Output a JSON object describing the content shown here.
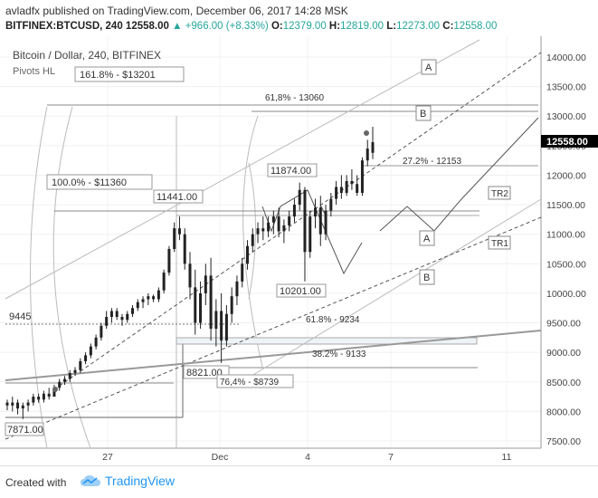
{
  "header": {
    "author": "avladfx",
    "published_text": "published on TradingView.com, December 06, 2017 14:28 MSK",
    "symbol": "BITFINEX:BTCUSD, 240",
    "last": "12558.00",
    "change": "+966.00 (+8.33%)",
    "o_label": "O:",
    "o_value": "12379.00",
    "h_label": "H:",
    "h_value": "12819.00",
    "l_label": "L:",
    "l_value": "12273.00",
    "c_label": "C:",
    "c_value": "12558.00"
  },
  "chart": {
    "title": "Bitcoin / Dollar, 240, BITFINEX",
    "indicator": "Pivots HL",
    "price_axis": [
      "14000.00",
      "13500.00",
      "13000.00",
      "12500.00",
      "12000.00",
      "11500.00",
      "11000.00",
      "10500.00",
      "10000.00",
      "9500.00",
      "9000.00",
      "8500.00",
      "8000.00",
      "7500.00"
    ],
    "last_price_label": "12558.00",
    "date_axis": [
      "27",
      "Dec",
      "4",
      "7",
      "11"
    ],
    "annotations": {
      "fib_1618": "161.8% - $13201",
      "fib_100": "100.0% - $11360",
      "fib_764": "76,4% - $8739",
      "r618_13060": "61,8% - 13060",
      "r272_12153": "27.2% - 12153",
      "r618_9234": "61.8% - 9234",
      "r382_9133": "38.2% - 9133",
      "pivot_11874": "11874.00",
      "pivot_11441": "11441.00",
      "pivot_10201": "10201.00",
      "pivot_8821": "8821.00",
      "pivot_7871": "7871.00",
      "level_9445": "9445",
      "label_A_top": "A",
      "label_B_top": "B",
      "label_TR2": "TR2",
      "label_A_low": "A",
      "label_TR1": "TR1",
      "label_B_low": "B"
    }
  },
  "footer": {
    "created_with": "Created with",
    "brand": "TradingView"
  },
  "colors": {
    "up": "#26a69a",
    "candle": "#222222",
    "last_price_bg": "#000000",
    "brand": "#2196f3"
  },
  "chart_data": {
    "type": "candlestick",
    "title": "Bitcoin / Dollar, 240, BITFINEX",
    "y_ticks": [
      7500,
      8000,
      8500,
      9000,
      9500,
      10000,
      10500,
      11000,
      11500,
      12000,
      12500,
      13000,
      13500,
      14000
    ],
    "x_ticks": [
      "27",
      "Dec",
      "4",
      "7",
      "11"
    ],
    "last_close": 12558,
    "series": [
      {
        "ohlc": [
          [
            8150,
            8200,
            8020,
            8100
          ],
          [
            8100,
            8250,
            8000,
            8150
          ],
          [
            8150,
            8200,
            7950,
            8050
          ],
          [
            8050,
            8150,
            7870,
            8100
          ],
          [
            8100,
            8200,
            8000,
            8150
          ],
          [
            8150,
            8300,
            8100,
            8250
          ],
          [
            8250,
            8300,
            8150,
            8200
          ],
          [
            8200,
            8350,
            8150,
            8300
          ],
          [
            8300,
            8400,
            8200,
            8250
          ],
          [
            8250,
            8450,
            8250,
            8400
          ],
          [
            8400,
            8550,
            8350,
            8500
          ],
          [
            8500,
            8600,
            8450,
            8550
          ],
          [
            8550,
            8700,
            8500,
            8650
          ],
          [
            8650,
            8750,
            8600,
            8700
          ],
          [
            8700,
            8900,
            8650,
            8850
          ],
          [
            8850,
            9000,
            8800,
            8950
          ],
          [
            8950,
            9150,
            8900,
            9100
          ],
          [
            9100,
            9300,
            9050,
            9250
          ],
          [
            9250,
            9500,
            9200,
            9450
          ],
          [
            9450,
            9700,
            9400,
            9600
          ],
          [
            9600,
            9750,
            9500,
            9700
          ],
          [
            9700,
            9750,
            9550,
            9600
          ],
          [
            9600,
            9650,
            9450,
            9550
          ],
          [
            9550,
            9700,
            9500,
            9650
          ],
          [
            9650,
            9800,
            9600,
            9750
          ],
          [
            9750,
            9900,
            9700,
            9850
          ],
          [
            9850,
            9950,
            9750,
            9900
          ],
          [
            9900,
            10000,
            9800,
            9950
          ],
          [
            9950,
            9980,
            9850,
            9900
          ],
          [
            9900,
            10100,
            9850,
            10050
          ],
          [
            10050,
            10400,
            10000,
            10350
          ],
          [
            10350,
            10800,
            10300,
            10750
          ],
          [
            10750,
            11200,
            10700,
            11100
          ],
          [
            11100,
            11300,
            10900,
            11000
          ],
          [
            11000,
            11100,
            10400,
            10500
          ],
          [
            10500,
            10700,
            9900,
            10100
          ],
          [
            10100,
            10400,
            9300,
            9500
          ],
          [
            9500,
            10200,
            9400,
            10000
          ],
          [
            10000,
            10500,
            9800,
            10300
          ],
          [
            10300,
            10600,
            9200,
            9400
          ],
          [
            9400,
            9900,
            9100,
            9700
          ],
          [
            9700,
            10000,
            8821,
            9200
          ],
          [
            9200,
            9800,
            9100,
            9650
          ],
          [
            9650,
            10100,
            9500,
            9950
          ],
          [
            9950,
            10300,
            9800,
            10200
          ],
          [
            10200,
            10600,
            10100,
            10500
          ],
          [
            10500,
            10900,
            10400,
            10800
          ],
          [
            10800,
            11100,
            10700,
            11000
          ],
          [
            11000,
            11200,
            10850,
            11100
          ],
          [
            11100,
            11300,
            10900,
            11050
          ],
          [
            11050,
            11300,
            10950,
            11200
          ],
          [
            11200,
            11400,
            11000,
            11300
          ],
          [
            11300,
            11450,
            10950,
            11050
          ],
          [
            11050,
            11250,
            10850,
            11150
          ],
          [
            11150,
            11400,
            11050,
            11300
          ],
          [
            11300,
            11600,
            11200,
            11500
          ],
          [
            11500,
            11874,
            11400,
            11750
          ],
          [
            11750,
            11800,
            10201,
            10700
          ],
          [
            10700,
            11400,
            10600,
            11300
          ],
          [
            11300,
            11600,
            11100,
            11450
          ],
          [
            11450,
            11650,
            10800,
            11000
          ],
          [
            11000,
            11500,
            10900,
            11400
          ],
          [
            11400,
            11700,
            11300,
            11600
          ],
          [
            11600,
            11900,
            11500,
            11800
          ],
          [
            11800,
            12000,
            11600,
            11700
          ],
          [
            11700,
            12000,
            11650,
            11900
          ],
          [
            11900,
            12100,
            11750,
            11850
          ],
          [
            11850,
            12000,
            11650,
            11700
          ],
          [
            11700,
            12300,
            11650,
            12250
          ],
          [
            12250,
            12600,
            12150,
            12450
          ],
          [
            12379,
            12819,
            12273,
            12558
          ]
        ]
      }
    ]
  }
}
